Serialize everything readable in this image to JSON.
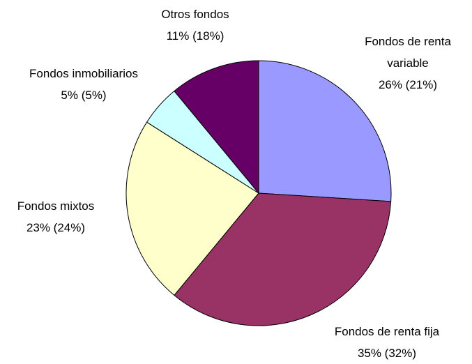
{
  "chart_data": {
    "type": "pie",
    "categories": [
      "Fondos de renta variable",
      "Fondos de renta fija",
      "Fondos mixtos",
      "Fondos inmobiliarios",
      "Otros fondos"
    ],
    "values": [
      26,
      35,
      23,
      5,
      11
    ],
    "value_labels": [
      "26% (21%)",
      "35% (32%)",
      "23% (24%)",
      "5% (5%)",
      "11% (18%)"
    ],
    "colors": [
      "#9999ff",
      "#993366",
      "#ffffcc",
      "#ccffff",
      "#660066"
    ]
  }
}
